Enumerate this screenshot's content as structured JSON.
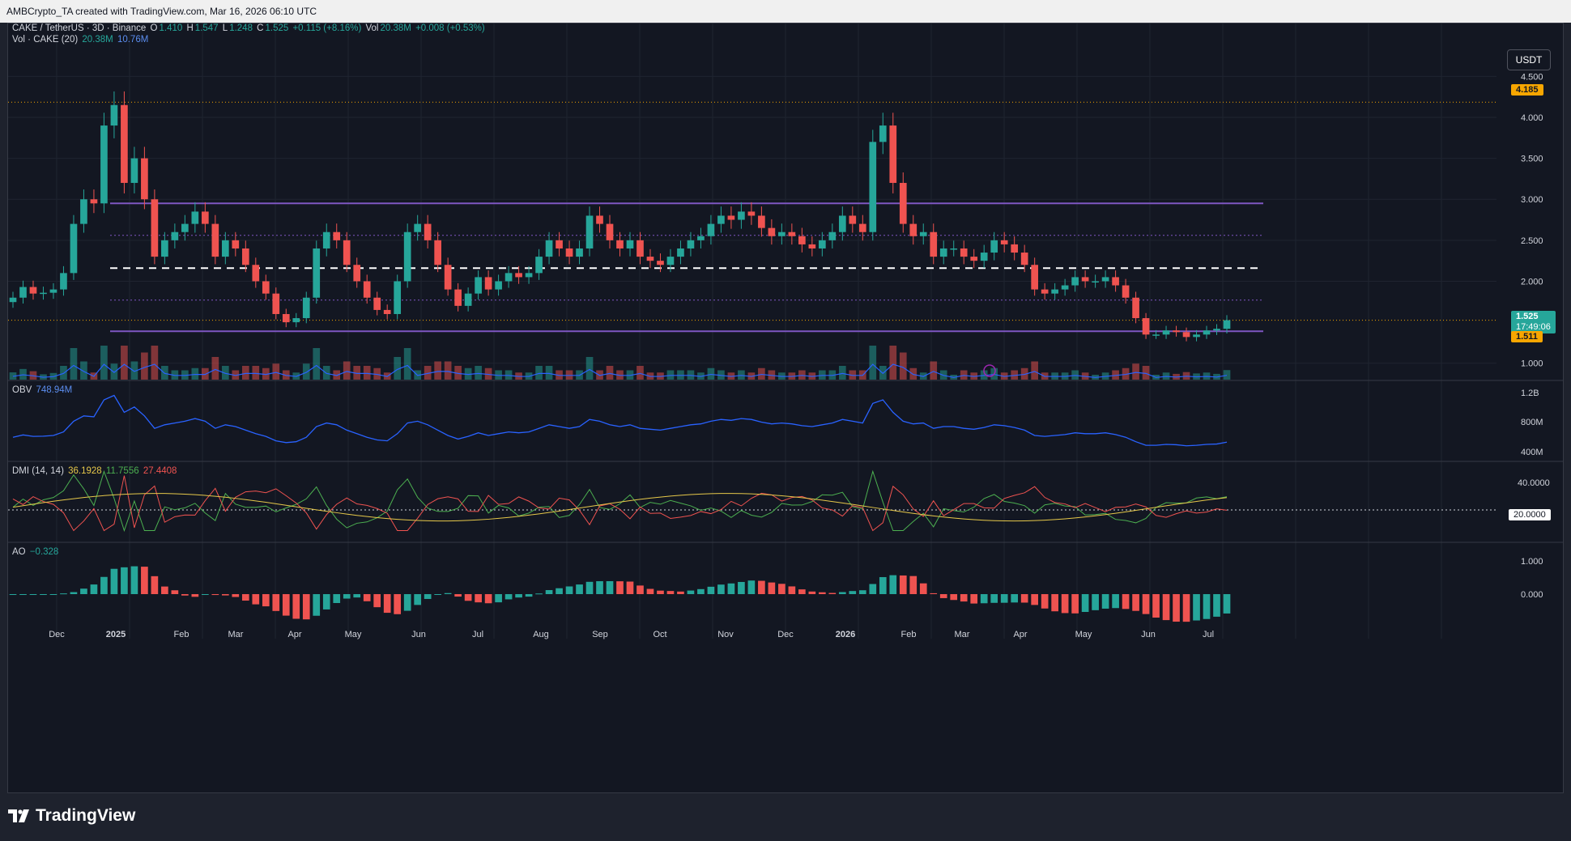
{
  "header": {
    "caption": "AMBCrypto_TA created with TradingView.com, Mar 16, 2026 06:10 UTC"
  },
  "currency_button": "USDT",
  "legend": {
    "symbol": "CAKE / TetherUS · 3D · Binance",
    "o_label": "O",
    "o_value": "1.410",
    "h_label": "H",
    "h_value": "1.547",
    "l_label": "L",
    "l_value": "1.248",
    "c_label": "C",
    "c_value": "1.525",
    "change": "+0.115 (+8.16%)",
    "vol_label": "Vol",
    "vol_value": "20.38M",
    "vol_change": "+0.008 (+0.53%)",
    "vol_ind_label": "Vol · CAKE (20)",
    "vol_ind_v1": "20.38M",
    "vol_ind_v2": "10.76M",
    "obv_label": "OBV",
    "obv_value": "748.94M",
    "dmi_label": "DMI (14, 14)",
    "dmi_adx": "36.1928",
    "dmi_plus": "11.7556",
    "dmi_minus": "27.4408",
    "ao_label": "AO",
    "ao_value": "−0.328"
  },
  "price_tags": {
    "resistance": "4.185",
    "current": "1.525",
    "countdown": "17:49:06",
    "support": "1.511",
    "dmi_level": "20.0000"
  },
  "colors": {
    "bull": "#26a69a",
    "bear": "#ef5350",
    "range_line": "#7e57c2",
    "obv": "#2962ff",
    "adx": "#e6c84a",
    "orange_tag": "#f7a600"
  },
  "footer": {
    "brand": "TradingView"
  },
  "chart_data": {
    "type": "candlestick",
    "symbol": "CAKE / TetherUS",
    "timeframe": "3D",
    "exchange": "Binance",
    "price_axis": [
      "4.500",
      "4.000",
      "3.500",
      "3.000",
      "2.500",
      "2.000",
      "1.000"
    ],
    "x_axis_labels": [
      "Dec",
      "2025",
      "Feb",
      "Mar",
      "Apr",
      "May",
      "Jun",
      "Jul",
      "Aug",
      "Sep",
      "Oct",
      "Nov",
      "Dec",
      "2026",
      "Feb",
      "Mar",
      "Apr",
      "May",
      "Jun",
      "Jul"
    ],
    "horizontal_levels": {
      "range_top": 2.95,
      "range_upper_dotted": 2.56,
      "range_mid_dashed": 2.16,
      "range_lower_dotted": 1.77,
      "range_bottom": 1.39,
      "resistance_dotted": 4.185
    },
    "closes": [
      1.8,
      1.93,
      1.85,
      1.86,
      1.9,
      2.1,
      2.7,
      3.0,
      2.95,
      3.9,
      4.15,
      3.2,
      3.5,
      3.0,
      2.3,
      2.5,
      2.6,
      2.7,
      2.85,
      2.7,
      2.3,
      2.5,
      2.4,
      2.2,
      2.0,
      1.85,
      1.6,
      1.5,
      1.55,
      1.8,
      2.4,
      2.6,
      2.5,
      2.2,
      2.0,
      1.8,
      1.65,
      1.6,
      2.0,
      2.6,
      2.7,
      2.5,
      2.2,
      1.9,
      1.7,
      1.85,
      2.05,
      1.9,
      2.0,
      2.1,
      2.05,
      2.1,
      2.3,
      2.5,
      2.4,
      2.3,
      2.4,
      2.8,
      2.7,
      2.5,
      2.4,
      2.5,
      2.3,
      2.25,
      2.2,
      2.3,
      2.4,
      2.5,
      2.55,
      2.7,
      2.8,
      2.75,
      2.85,
      2.8,
      2.65,
      2.55,
      2.6,
      2.55,
      2.45,
      2.4,
      2.5,
      2.6,
      2.8,
      2.7,
      2.6,
      3.7,
      3.9,
      3.2,
      2.7,
      2.55,
      2.6,
      2.3,
      2.4,
      2.4,
      2.3,
      2.25,
      2.35,
      2.5,
      2.45,
      2.35,
      2.2,
      1.9,
      1.85,
      1.9,
      1.95,
      2.05,
      2.0,
      2.0,
      2.05,
      1.95,
      1.8,
      1.55,
      1.35,
      1.35,
      1.4,
      1.38,
      1.32,
      1.35,
      1.4,
      1.42,
      1.525
    ],
    "obv_range": [
      "400M",
      "1.2B"
    ],
    "dmi_range": [
      0,
      40
    ],
    "ao_range": [
      -0.5,
      1.0
    ]
  }
}
